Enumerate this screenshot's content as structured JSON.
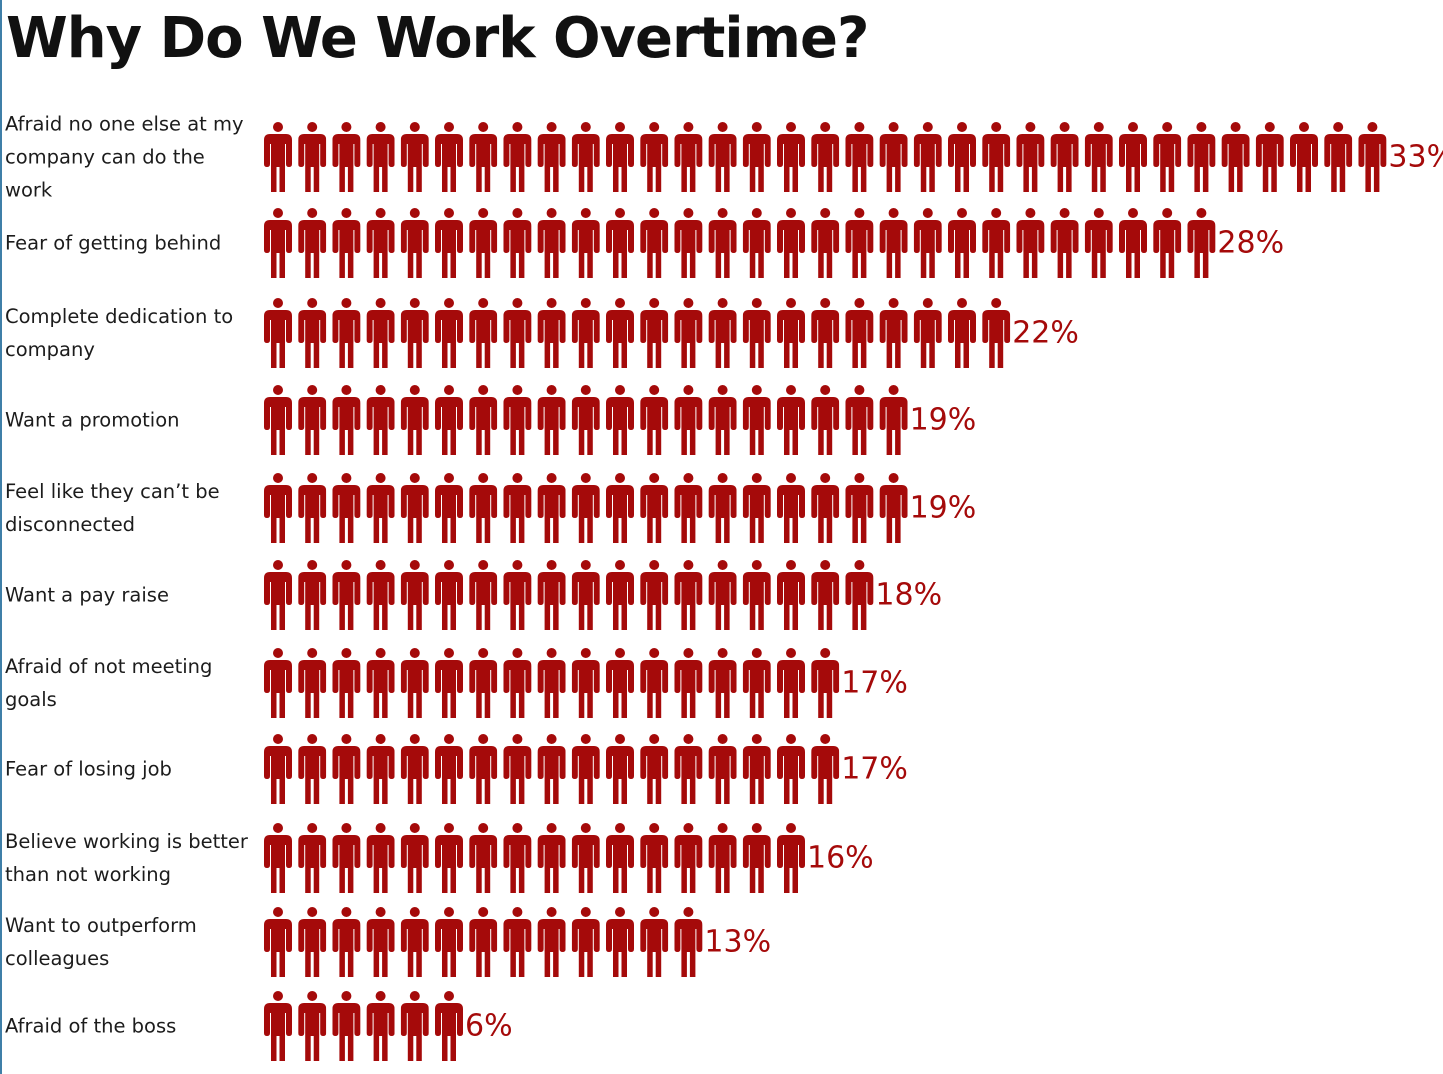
{
  "chart_data": {
    "type": "bar",
    "title": "Why Do We Work Overtime?",
    "mark": "person-icon",
    "unit": "%",
    "color": "#a50a0a",
    "categories": [
      "Afraid no one else at my company can do the work",
      "Fear of getting behind",
      "Complete dedication to company",
      "Want a promotion",
      "Feel like they can’t be disconnected",
      "Want a pay raise",
      "Afraid of not meeting goals",
      "Fear of losing job",
      "Believe working is better than not working",
      "Want to outperform colleagues",
      "Afraid of the boss"
    ],
    "values": [
      33,
      28,
      22,
      19,
      19,
      18,
      17,
      17,
      16,
      13,
      6
    ],
    "value_labels": [
      "33%",
      "28%",
      "22%",
      "19%",
      "19%",
      "18%",
      "17%",
      "17%",
      "16%",
      "13%",
      "6%"
    ]
  }
}
